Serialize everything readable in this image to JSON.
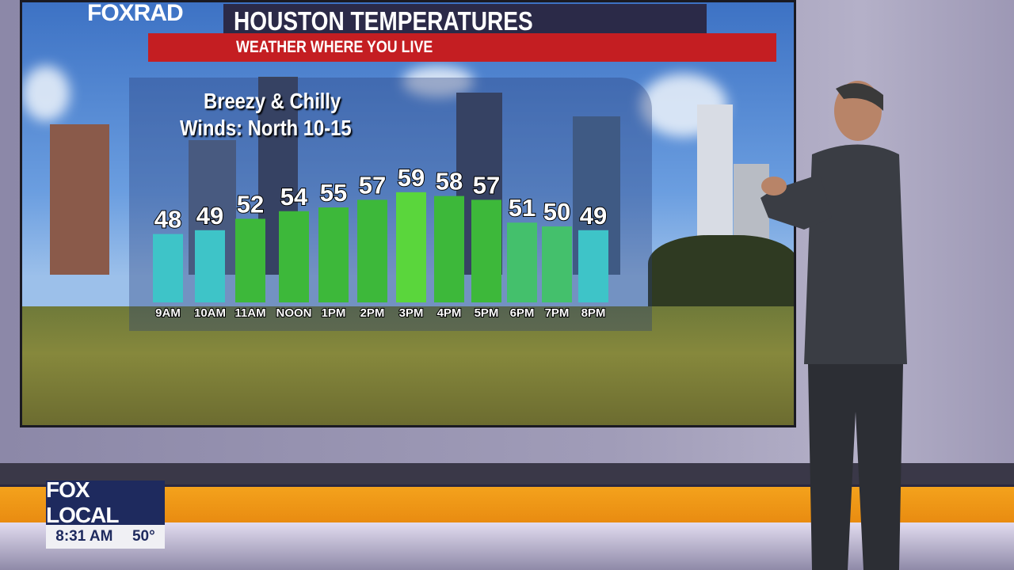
{
  "graphic": {
    "logo": "FOXRAD",
    "title": "HOUSTON TEMPERATURES",
    "subtitle": "WEATHER WHERE YOU LIVE",
    "note_line1": "Breezy & Chilly",
    "note_line2": "Winds: North 10-15"
  },
  "bug": {
    "logo": "FOX LOCAL",
    "time": "8:31 AM",
    "temp": "50°"
  },
  "colors": {
    "cool": "#3ec4c8",
    "mid": "#44c06c",
    "warm": "#3db83a",
    "hot": "#5ad63c",
    "title_bar": "#2b2a48",
    "red_bar": "#c41e22"
  },
  "chart_data": {
    "type": "bar",
    "categories": [
      "9AM",
      "10AM",
      "11AM",
      "NOON",
      "1PM",
      "2PM",
      "3PM",
      "4PM",
      "5PM",
      "6PM",
      "7PM",
      "8PM"
    ],
    "values": [
      48,
      49,
      52,
      54,
      55,
      57,
      59,
      58,
      57,
      51,
      50,
      49
    ],
    "title": "HOUSTON TEMPERATURES",
    "xlabel": "",
    "ylabel": "",
    "grid": false
  }
}
